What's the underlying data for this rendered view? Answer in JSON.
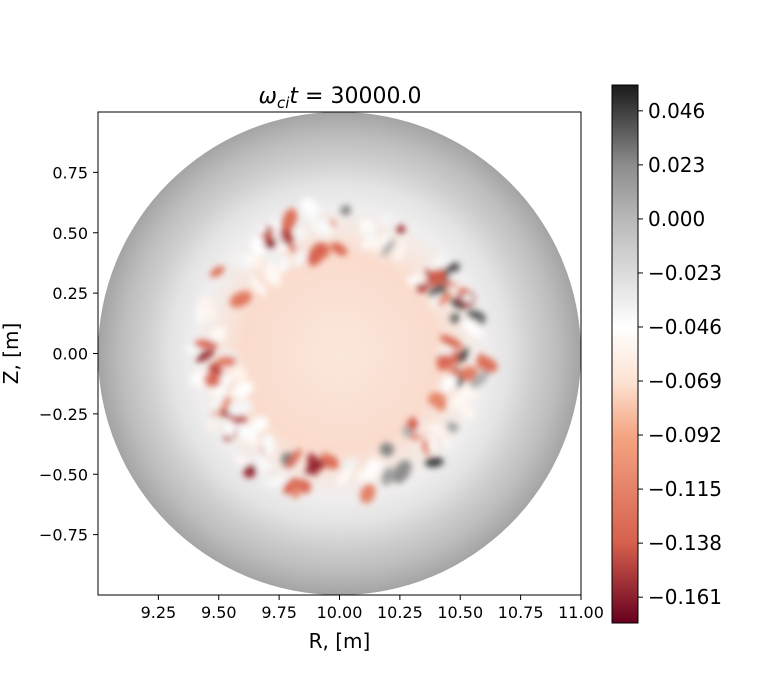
{
  "chart_data": {
    "type": "heatmap",
    "title": {
      "omega": "ω",
      "sub": "ci",
      "t": "t",
      "eq": " = 30000.0"
    },
    "xlabel": "R, [m]",
    "ylabel": "Z, [m]",
    "xlim": [
      9.0,
      11.0
    ],
    "ylim": [
      -1.0,
      1.0
    ],
    "x_ticks": [
      9.25,
      9.5,
      9.75,
      10.0,
      10.25,
      10.5,
      10.75,
      11.0
    ],
    "x_tick_labels": [
      "9.25",
      "9.50",
      "9.75",
      "10.00",
      "10.25",
      "10.50",
      "10.75",
      "11.00"
    ],
    "y_ticks": [
      0.75,
      0.5,
      0.25,
      0.0,
      -0.25,
      -0.5,
      -0.75
    ],
    "y_tick_labels": [
      "0.75",
      "0.50",
      "0.25",
      "0.00",
      "−0.25",
      "−0.50",
      "−0.75"
    ],
    "domain": {
      "center_R": 10.0,
      "center_Z": 0.0,
      "radius": 1.0
    },
    "colorbar": {
      "vmin": -0.172,
      "vmax": 0.057,
      "ticks": [
        0.046,
        0.023,
        0.0,
        -0.023,
        -0.046,
        -0.069,
        -0.092,
        -0.115,
        -0.138,
        -0.161
      ],
      "tick_labels": [
        "0.046",
        "0.023",
        "0.000",
        "−0.023",
        "−0.046",
        "−0.069",
        "−0.092",
        "−0.115",
        "−0.138",
        "−0.161"
      ],
      "colormap": "RdGy",
      "stops": [
        {
          "value": 0.057,
          "color": "#1a1a1a"
        },
        {
          "value": 0.023,
          "color": "#8c8c8c"
        },
        {
          "value": 0.0,
          "color": "#b8b8b8"
        },
        {
          "value": -0.046,
          "color": "#ffffff"
        },
        {
          "value": -0.069,
          "color": "#fde3d3"
        },
        {
          "value": -0.092,
          "color": "#f4a582"
        },
        {
          "value": -0.138,
          "color": "#d6604d"
        },
        {
          "value": -0.172,
          "color": "#67001f"
        }
      ]
    },
    "field_description_values": {
      "core_value": -0.082,
      "edge_value": 0.0,
      "ring_minimum": -0.161,
      "ring_maximum": 0.046
    }
  }
}
